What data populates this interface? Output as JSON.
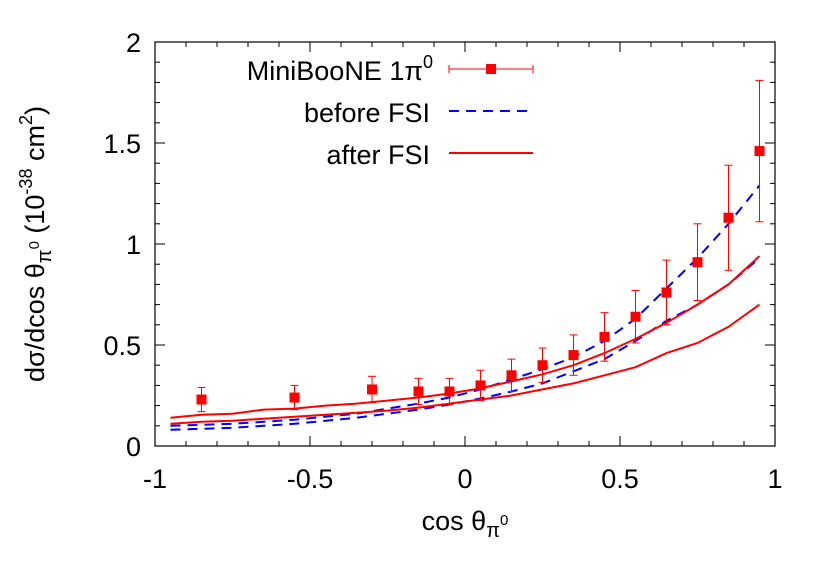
{
  "chart_data": {
    "type": "line",
    "xlim": [
      -1,
      1
    ],
    "ylim": [
      0,
      2
    ],
    "x_ticks": [
      -1,
      -0.5,
      0,
      0.5,
      1
    ],
    "x_tick_labels": [
      "-1",
      "-0.5",
      "0",
      "0.5",
      "1"
    ],
    "y_ticks": [
      0,
      0.5,
      1,
      1.5,
      2
    ],
    "y_tick_labels": [
      "0",
      "0.5",
      "1",
      "1.5",
      "2"
    ],
    "xlabel": {
      "main": "cos θ",
      "sub": "π",
      "subsup": "0"
    },
    "ylabel": {
      "p1": "dσ/dcos θ",
      "sub": "π",
      "subsup": "0",
      "p2": " (10",
      "sup1": "-38",
      "p3": " cm",
      "sup2": "2",
      "p4": ")"
    },
    "legend_position": "top-left",
    "grid": false,
    "colors": {
      "data": "#ff0000",
      "before": "#0000ff",
      "after": "#ff0000",
      "axis": "#000000"
    },
    "series": [
      {
        "name": "MiniBooNE 1π",
        "name_sup": "0",
        "style": "points-errorbars",
        "x": [
          -0.85,
          -0.55,
          -0.3,
          -0.15,
          -0.05,
          0.05,
          0.15,
          0.25,
          0.35,
          0.45,
          0.55,
          0.65,
          0.75,
          0.85,
          0.95
        ],
        "y": [
          0.23,
          0.24,
          0.28,
          0.27,
          0.27,
          0.3,
          0.35,
          0.4,
          0.45,
          0.54,
          0.64,
          0.76,
          0.91,
          1.13,
          1.46
        ],
        "yerr": [
          0.06,
          0.06,
          0.065,
          0.065,
          0.065,
          0.075,
          0.08,
          0.085,
          0.1,
          0.12,
          0.13,
          0.16,
          0.19,
          0.26,
          0.35
        ]
      },
      {
        "name": "before FSI",
        "style": "dashed",
        "curves": [
          {
            "x": [
              -0.95,
              -0.85,
              -0.75,
              -0.65,
              -0.55,
              -0.45,
              -0.35,
              -0.25,
              -0.15,
              -0.05,
              0.05,
              0.15,
              0.25,
              0.35,
              0.45,
              0.55,
              0.65,
              0.75,
              0.85,
              0.95
            ],
            "y": [
              0.1,
              0.105,
              0.11,
              0.12,
              0.13,
              0.145,
              0.16,
              0.185,
              0.21,
              0.24,
              0.28,
              0.33,
              0.38,
              0.44,
              0.52,
              0.63,
              0.78,
              0.93,
              1.1,
              1.29
            ]
          },
          {
            "x": [
              -0.95,
              -0.85,
              -0.75,
              -0.65,
              -0.55,
              -0.45,
              -0.35,
              -0.25,
              -0.15,
              -0.05,
              0.05,
              0.15,
              0.25,
              0.35,
              0.45,
              0.55,
              0.65,
              0.75,
              0.85,
              0.95
            ],
            "y": [
              0.08,
              0.085,
              0.09,
              0.1,
              0.11,
              0.125,
              0.14,
              0.16,
              0.18,
              0.205,
              0.235,
              0.27,
              0.31,
              0.37,
              0.43,
              0.52,
              0.62,
              0.7,
              0.8,
              0.93
            ]
          }
        ]
      },
      {
        "name": "after FSI",
        "style": "solid",
        "curves": [
          {
            "x": [
              -0.95,
              -0.85,
              -0.75,
              -0.65,
              -0.55,
              -0.45,
              -0.35,
              -0.25,
              -0.15,
              -0.05,
              0.05,
              0.15,
              0.25,
              0.35,
              0.45,
              0.55,
              0.65,
              0.75,
              0.85,
              0.95
            ],
            "y": [
              0.14,
              0.155,
              0.16,
              0.18,
              0.185,
              0.2,
              0.21,
              0.225,
              0.24,
              0.26,
              0.285,
              0.32,
              0.355,
              0.4,
              0.46,
              0.53,
              0.61,
              0.7,
              0.8,
              0.94
            ]
          },
          {
            "x": [
              -0.95,
              -0.85,
              -0.75,
              -0.65,
              -0.55,
              -0.45,
              -0.35,
              -0.25,
              -0.15,
              -0.05,
              0.05,
              0.15,
              0.25,
              0.35,
              0.45,
              0.55,
              0.65,
              0.75,
              0.85,
              0.95
            ],
            "y": [
              0.11,
              0.12,
              0.125,
              0.135,
              0.145,
              0.155,
              0.165,
              0.175,
              0.19,
              0.21,
              0.23,
              0.25,
              0.28,
              0.31,
              0.35,
              0.39,
              0.46,
              0.51,
              0.59,
              0.7
            ]
          }
        ]
      }
    ]
  }
}
